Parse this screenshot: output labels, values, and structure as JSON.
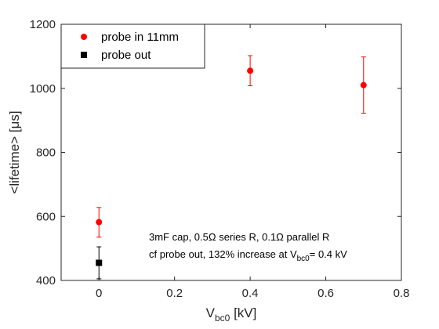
{
  "chart_data": {
    "type": "scatter",
    "title": "",
    "xlabel": {
      "base": "V",
      "sub": "bc0",
      "unit": " [kV]"
    },
    "ylabel": "<lifetime> [μs]",
    "xlim": [
      -0.1,
      0.8
    ],
    "ylim": [
      400,
      1200
    ],
    "x_ticks": [
      0,
      0.2,
      0.4,
      0.6,
      0.8
    ],
    "x_tick_labels": [
      "0",
      "0.2",
      "0.4",
      "0.6",
      "0.8"
    ],
    "y_ticks": [
      400,
      600,
      800,
      1000,
      1200
    ],
    "y_tick_labels": [
      "400",
      "600",
      "800",
      "1000",
      "1200"
    ],
    "grid": false,
    "legend_position": "top-left",
    "series": [
      {
        "name": "probe in 11mm",
        "color": "#ff0000",
        "marker": "circle",
        "points": [
          {
            "x": 0,
            "y": 582,
            "err_low": 535,
            "err_high": 628
          },
          {
            "x": 0.4,
            "y": 1055,
            "err_low": 1008,
            "err_high": 1102
          },
          {
            "x": 0.7,
            "y": 1010,
            "err_low": 922,
            "err_high": 1098
          }
        ]
      },
      {
        "name": "probe out",
        "color": "#000000",
        "marker": "square",
        "points": [
          {
            "x": 0,
            "y": 455,
            "err_low": 405,
            "err_high": 505
          }
        ]
      }
    ],
    "annotations": [
      {
        "text": "3mF cap, 0.5Ω series R, 0.1Ω parallel R"
      },
      {
        "text_before": "cf probe out, 132% increase at V",
        "sub": "bc0",
        "text_after": "= 0.4 kV"
      }
    ]
  }
}
